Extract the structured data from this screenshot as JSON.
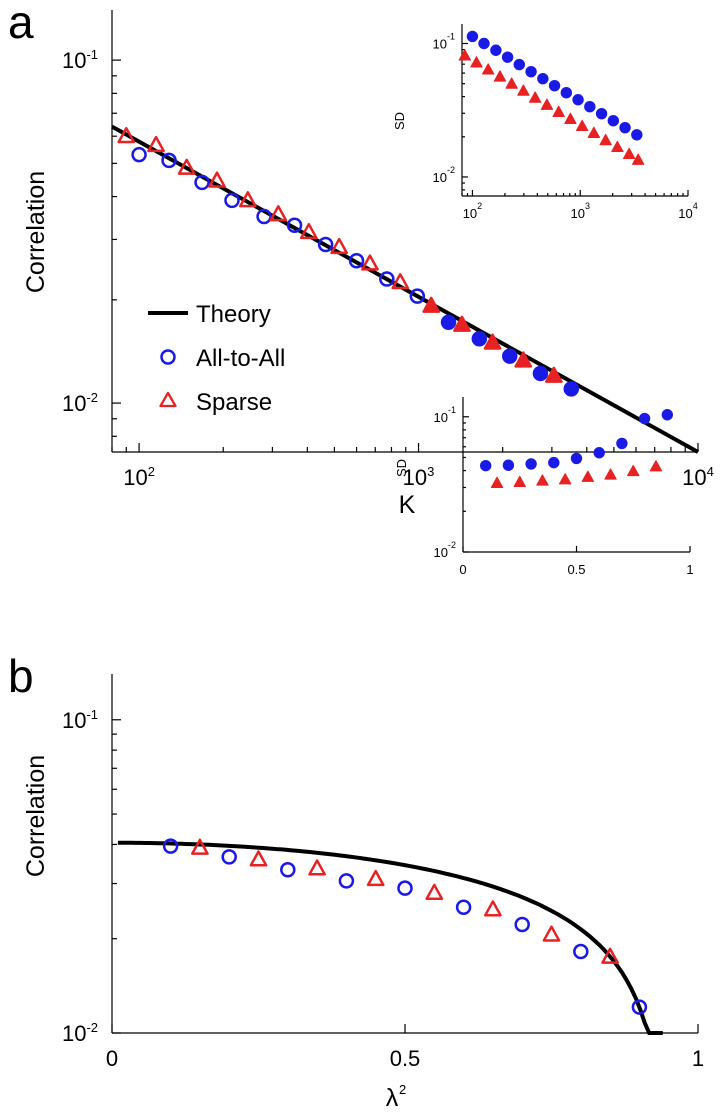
{
  "colors": {
    "theory": "#000000",
    "all_to_all": "#1a1ae6",
    "sparse": "#e62222"
  },
  "chart_data": [
    {
      "panel": "a",
      "type": "scatter",
      "xlabel": "K",
      "ylabel": "Correlation",
      "xscale": "log",
      "yscale": "log",
      "xlim": [
        80,
        10000
      ],
      "ylim": [
        0.0072,
        0.14
      ],
      "xticks": [
        {
          "value": 100,
          "base": "10",
          "exp": "2"
        },
        {
          "value": 1000,
          "base": "10",
          "exp": "3"
        },
        {
          "value": 10000,
          "base": "10",
          "exp": "4"
        }
      ],
      "yticks": [
        {
          "value": 0.01,
          "base": "10",
          "exp": "-2"
        },
        {
          "value": 0.1,
          "base": "10",
          "exp": "-1"
        }
      ],
      "legend": {
        "position": "lower-left",
        "entries": [
          {
            "label": "Theory",
            "marker": "line"
          },
          {
            "label": "All-to-All",
            "marker": "circle"
          },
          {
            "label": "Sparse",
            "marker": "triangle"
          }
        ]
      },
      "series": [
        {
          "name": "Theory",
          "kind": "line",
          "x": [
            80,
            10000
          ],
          "y": [
            0.064,
            0.0072
          ]
        },
        {
          "name": "All-to-All",
          "kind": "circle",
          "x": [
            100,
            128,
            168,
            215,
            280,
            360,
            465,
            600,
            770,
            990,
            1280,
            1650,
            2120,
            2730,
            3520
          ],
          "y": [
            0.053,
            0.051,
            0.044,
            0.039,
            0.035,
            0.033,
            0.029,
            0.026,
            0.023,
            0.0205,
            0.0172,
            0.0154,
            0.0137,
            0.0122,
            0.011
          ],
          "filled_from_x": 1200
        },
        {
          "name": "Sparse",
          "kind": "triangle",
          "x": [
            90,
            115,
            148,
            190,
            245,
            315,
            405,
            520,
            670,
            860,
            1110,
            1430,
            1840,
            2370,
            3050
          ],
          "y": [
            0.06,
            0.0565,
            0.0485,
            0.0445,
            0.039,
            0.0355,
            0.0315,
            0.0285,
            0.0255,
            0.0225,
            0.0192,
            0.0169,
            0.015,
            0.0133,
            0.012
          ],
          "filled_from_x": 1000
        }
      ],
      "inset": {
        "ylabel": "SD",
        "xscale": "log",
        "yscale": "log",
        "xlim": [
          80,
          10000
        ],
        "ylim": [
          0.0072,
          0.14
        ],
        "xticks": [
          {
            "value": 100,
            "base": "10",
            "exp": "2"
          },
          {
            "value": 1000,
            "base": "10",
            "exp": "3"
          },
          {
            "value": 10000,
            "base": "10",
            "exp": "4"
          }
        ],
        "yticks": [
          {
            "value": 0.01,
            "base": "10",
            "exp": "-2"
          },
          {
            "value": 0.1,
            "base": "10",
            "exp": "-1"
          }
        ],
        "series": [
          {
            "name": "All-to-All",
            "kind": "circle-filled",
            "x": [
              100,
              128,
              165,
              212,
              272,
              350,
              450,
              578,
              743,
              955,
              1228,
              1578,
              2028,
              2606,
              3350
            ],
            "y": [
              0.113,
              0.1,
              0.089,
              0.079,
              0.0695,
              0.0615,
              0.0545,
              0.0483,
              0.0428,
              0.0379,
              0.0336,
              0.0298,
              0.0264,
              0.0234,
              0.0207
            ]
          },
          {
            "name": "Sparse",
            "kind": "triangle-filled",
            "x": [
              85,
              109,
              140,
              180,
              231,
              297,
              382,
              491,
              631,
              811,
              1042,
              1339,
              1721,
              2212,
              2843,
              3450
            ],
            "y": [
              0.081,
              0.0718,
              0.0636,
              0.0563,
              0.0498,
              0.0441,
              0.0391,
              0.0346,
              0.0306,
              0.0271,
              0.024,
              0.0213,
              0.0188,
              0.0167,
              0.0148,
              0.0134
            ]
          }
        ]
      }
    },
    {
      "panel": "b",
      "type": "scatter",
      "xlabel": "λ",
      "xlabel_sup": "2",
      "ylabel": "Correlation",
      "xscale": "linear",
      "yscale": "log",
      "xlim": [
        0,
        1
      ],
      "ylim": [
        0.01,
        0.14
      ],
      "xticks": [
        {
          "value": 0,
          "label": "0"
        },
        {
          "value": 0.5,
          "label": "0.5"
        },
        {
          "value": 1,
          "label": "1"
        }
      ],
      "yticks": [
        {
          "value": 0.01,
          "base": "10",
          "exp": "-2"
        },
        {
          "value": 0.1,
          "base": "10",
          "exp": "-1"
        }
      ],
      "series": [
        {
          "name": "Theory",
          "kind": "curve",
          "formula": "0.0405*sqrt(1-(x/0.943)^2)",
          "x_range": [
            0.01,
            0.94
          ]
        },
        {
          "name": "All-to-All",
          "kind": "circle",
          "x": [
            0.1,
            0.2,
            0.3,
            0.4,
            0.5,
            0.6,
            0.7,
            0.8,
            0.9
          ],
          "y": [
            0.0395,
            0.0365,
            0.0332,
            0.0306,
            0.029,
            0.0252,
            0.0222,
            0.0182,
            0.0121
          ]
        },
        {
          "name": "Sparse",
          "kind": "triangle",
          "x": [
            0.15,
            0.25,
            0.35,
            0.45,
            0.55,
            0.65,
            0.75,
            0.85
          ],
          "y": [
            0.039,
            0.0358,
            0.0335,
            0.031,
            0.028,
            0.0248,
            0.0206,
            0.0175
          ]
        }
      ],
      "inset": {
        "ylabel": "SD",
        "xscale": "linear",
        "yscale": "log",
        "xlim": [
          0,
          1
        ],
        "ylim": [
          0.01,
          0.14
        ],
        "xticks": [
          {
            "value": 0,
            "label": "0"
          },
          {
            "value": 0.5,
            "label": "0.5"
          },
          {
            "value": 1,
            "label": "1"
          }
        ],
        "yticks": [
          {
            "value": 0.01,
            "base": "10",
            "exp": "-2"
          },
          {
            "value": 0.1,
            "base": "10",
            "exp": "-1"
          }
        ],
        "series": [
          {
            "name": "All-to-All",
            "kind": "circle-filled",
            "x": [
              0.1,
              0.2,
              0.3,
              0.4,
              0.5,
              0.6,
              0.7,
              0.8,
              0.9
            ],
            "y": [
              0.0435,
              0.0438,
              0.0448,
              0.0458,
              0.0492,
              0.0542,
              0.0635,
              0.097,
              0.1035
            ]
          },
          {
            "name": "Sparse",
            "kind": "triangle-filled",
            "x": [
              0.15,
              0.25,
              0.35,
              0.45,
              0.55,
              0.65,
              0.75,
              0.85
            ],
            "y": [
              0.0323,
              0.0328,
              0.0336,
              0.0343,
              0.0358,
              0.0372,
              0.0395,
              0.0428
            ]
          }
        ]
      }
    }
  ]
}
